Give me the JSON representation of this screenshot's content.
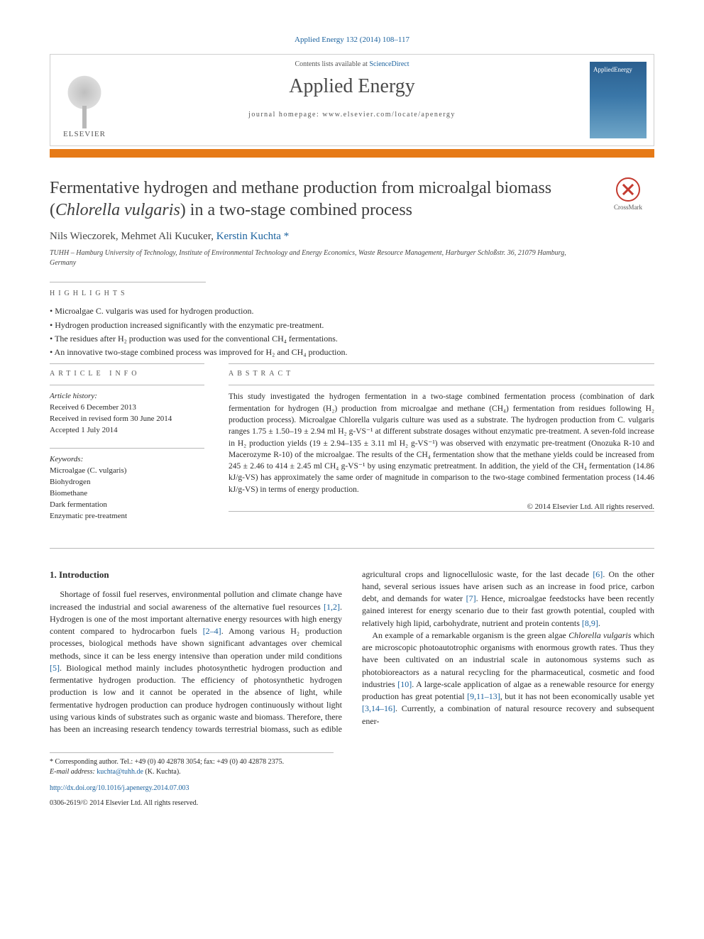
{
  "citation": "Applied Energy 132 (2014) 108–117",
  "header": {
    "contents_prefix": "Contents lists available at ",
    "contents_link": "ScienceDirect",
    "journal": "Applied Energy",
    "homepage_prefix": "journal homepage: ",
    "homepage": "www.elsevier.com/locate/apenergy",
    "publisher": "ELSEVIER",
    "cover_label": "AppliedEnergy"
  },
  "crossmark": "CrossMark",
  "title_a": "Fermentative hydrogen and methane production from microalgal biomass (",
  "title_species": "Chlorella vulgaris",
  "title_b": ") in a two-stage combined process",
  "authors_plain": "Nils Wieczorek, Mehmet Ali Kucuker, ",
  "author_corr": "Kerstin Kuchta",
  "author_star": " *",
  "affiliation": "TUHH – Hamburg University of Technology, Institute of Environmental Technology and Energy Economics, Waste Resource Management, Harburger Schloßstr. 36, 21079 Hamburg, Germany",
  "highlights_label": "HIGHLIGHTS",
  "highlights": [
    "Microalgae C. vulgaris was used for hydrogen production.",
    "Hydrogen production increased significantly with the enzymatic pre-treatment.",
    "The residues after H₂ production was used for the conventional CH₄ fermentations.",
    "An innovative two-stage combined process was improved for H₂ and CH₄ production."
  ],
  "info_label": "ARTICLE INFO",
  "abs_label": "ABSTRACT",
  "history_head": "Article history:",
  "history": [
    "Received 6 December 2013",
    "Received in revised form 30 June 2014",
    "Accepted 1 July 2014"
  ],
  "keywords_head": "Keywords:",
  "keywords": [
    "Microalgae (C. vulgaris)",
    "Biohydrogen",
    "Biomethane",
    "Dark fermentation",
    "Enzymatic pre-treatment"
  ],
  "abstract": "This study investigated the hydrogen fermentation in a two-stage combined fermentation process (combination of dark fermentation for hydrogen (H₂) production from microalgae and methane (CH₄) fermentation from residues following H₂ production process). Microalgae Chlorella vulgaris culture was used as a substrate. The hydrogen production from C. vulgaris ranges 1.75 ± 1.50–19 ± 2.94 ml H₂ g-VS⁻¹ at different substrate dosages without enzymatic pre-treatment. A seven-fold increase in H₂ production yields (19 ± 2.94–135 ± 3.11 ml H₂ g-VS⁻¹) was observed with enzymatic pre-treatment (Onozuka R-10 and Macerozyme R-10) of the microalgae. The results of the CH₄ fermentation show that the methane yields could be increased from 245 ± 2.46 to 414 ± 2.45 ml CH₄ g-VS⁻¹ by using enzymatic pretreatment. In addition, the yield of the CH₄ fermentation (14.86 kJ/g-VS) has approximately the same order of magnitude in comparison to the two-stage combined fermentation process (14.46 kJ/g-VS) in terms of energy production.",
  "copyright": "© 2014 Elsevier Ltd. All rights reserved.",
  "intro_head": "1. Introduction",
  "intro_p1_a": "Shortage of fossil fuel reserves, environmental pollution and climate change have increased the industrial and social awareness of the alternative fuel resources ",
  "intro_p1_r1": "[1,2]",
  "intro_p1_b": ". Hydrogen is one of the most important alternative energy resources with high energy content compared to hydrocarbon fuels ",
  "intro_p1_r2": "[2–4]",
  "intro_p1_c": ". Among various H₂ production processes, biological methods have shown significant advantages over chemical methods, since it can be less energy intensive than operation under mild conditions ",
  "intro_p1_r3": "[5]",
  "intro_p1_d": ". Biological method mainly includes photosynthetic hydrogen production and fermentative hydrogen production. The efficiency of photosynthetic hydrogen production is low and it cannot be operated in the absence of light, while fermentative hydrogen production can produce hydrogen continuously without light using various kinds of ",
  "intro_p1_e": "substrates such as organic waste and biomass. Therefore, there has been an increasing research tendency towards terrestrial biomass, such as edible agricultural crops and lignocellulosic waste, for the last decade ",
  "intro_p1_r4": "[6]",
  "intro_p1_f": ". On the other hand, several serious issues have arisen such as an increase in food price, carbon debt, and demands for water ",
  "intro_p1_r5": "[7]",
  "intro_p1_g": ". Hence, microalgae feedstocks have been recently gained interest for energy scenario due to their fast growth potential, coupled with relatively high lipid, carbohydrate, nutrient and protein contents ",
  "intro_p1_r6": "[8,9]",
  "intro_p1_h": ".",
  "intro_p2_a": "An example of a remarkable organism is the green algae ",
  "intro_p2_sp": "Chlorella vulgaris",
  "intro_p2_b": " which are microscopic photoautotrophic organisms with enormous growth rates. Thus they have been cultivated on an industrial scale in autonomous systems such as photobioreactors as a natural recycling for the pharmaceutical, cosmetic and food industries ",
  "intro_p2_r1": "[10]",
  "intro_p2_c": ". A large-scale application of algae as a renewable resource for energy production has great potential ",
  "intro_p2_r2": "[9,11–13]",
  "intro_p2_d": ", but it has not been economically usable yet ",
  "intro_p2_r3": "[3,14–16]",
  "intro_p2_e": ". Currently, a combination of natural resource recovery and subsequent ener-",
  "foot_corr": "* Corresponding author. Tel.: +49 (0) 40 42878 3054; fax: +49 (0) 40 42878 2375.",
  "foot_email_label": "E-mail address: ",
  "foot_email": "kuchta@tuhh.de",
  "foot_email_tail": " (K. Kuchta).",
  "doi": "http://dx.doi.org/10.1016/j.apenergy.2014.07.003",
  "issn_line": "0306-2619/© 2014 Elsevier Ltd. All rights reserved.",
  "colors": {
    "link": "#1b629e",
    "orange": "#e67a17",
    "text": "#2a2a2a"
  }
}
